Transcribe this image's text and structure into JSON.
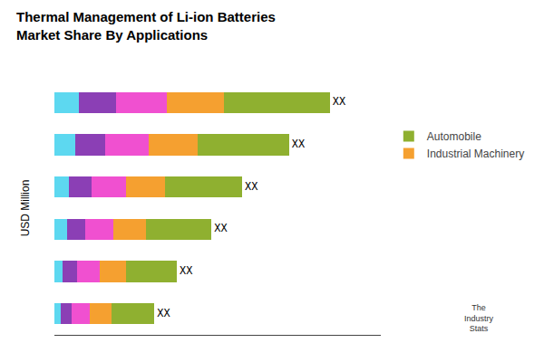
{
  "chart_data": {
    "type": "bar",
    "orientation": "horizontal",
    "stacked": true,
    "title": "Thermal Management of Li-ion Batteries\nMarket Share By Applications",
    "ylabel": "USD Million",
    "categories": [
      null,
      null,
      null,
      null,
      null,
      null
    ],
    "series": [
      {
        "color": "#5DD8F0",
        "values": [
          1.2,
          1.0,
          0.7,
          0.6,
          0.4,
          0.3
        ]
      },
      {
        "color": "#8B3FB5",
        "values": [
          1.8,
          1.5,
          1.1,
          0.9,
          0.7,
          0.55
        ]
      },
      {
        "color": "#F050D0",
        "values": [
          2.5,
          2.1,
          1.7,
          1.4,
          1.1,
          0.9
        ]
      },
      {
        "name": "Industrial Machinery",
        "color": "#F5A030",
        "values": [
          2.8,
          2.4,
          1.9,
          1.6,
          1.3,
          1.05
        ]
      },
      {
        "name": "Automobile",
        "color": "#8FB030",
        "values": [
          5.2,
          4.5,
          3.8,
          3.2,
          2.5,
          2.1
        ],
        "value_labels": [
          "XX",
          "XX",
          "XX",
          "XX",
          "XX",
          "XX"
        ]
      }
    ],
    "xlim": [
      0,
      16
    ],
    "tick_labels": false,
    "grid": false,
    "legend": "right",
    "annotations": [
      {
        "text": "The\nIndustry\nStats"
      }
    ]
  }
}
